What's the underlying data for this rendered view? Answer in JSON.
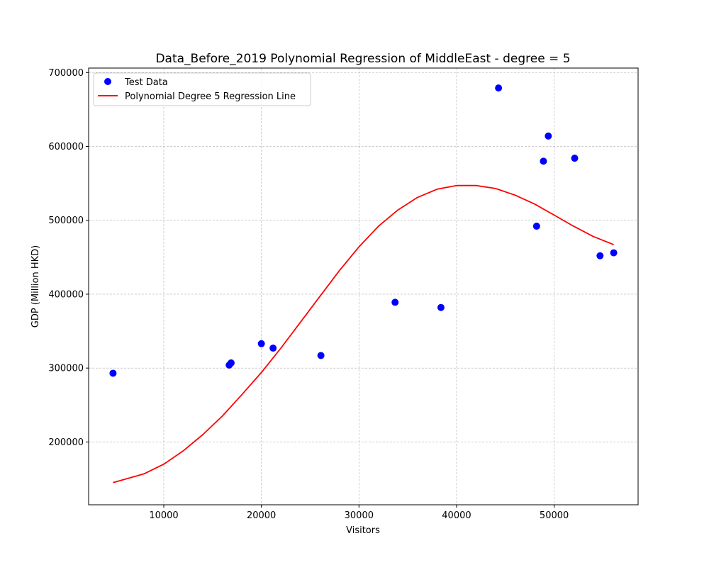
{
  "chart_data": {
    "type": "scatter",
    "title": "Data_Before_2019 Polynomial Regression of MiddleEast - degree = 5",
    "xlabel": "Visitors",
    "ylabel": "GDP (Million HKD)",
    "xlim": [
      2300,
      58600
    ],
    "ylim": [
      115000,
      706000
    ],
    "xticks": [
      10000,
      20000,
      30000,
      40000,
      50000
    ],
    "yticks": [
      200000,
      300000,
      400000,
      500000,
      600000,
      700000
    ],
    "xtick_labels": [
      "10000",
      "20000",
      "30000",
      "40000",
      "50000"
    ],
    "ytick_labels": [
      "200000",
      "300000",
      "400000",
      "500000",
      "600000",
      "700000"
    ],
    "grid": true,
    "legend_position": "top-left",
    "series": [
      {
        "name": "Test Data",
        "kind": "scatter",
        "color": "#0000ff",
        "points": [
          {
            "x": 4800,
            "y": 293000
          },
          {
            "x": 16700,
            "y": 304000
          },
          {
            "x": 16900,
            "y": 307000
          },
          {
            "x": 20000,
            "y": 333000
          },
          {
            "x": 21200,
            "y": 327000
          },
          {
            "x": 26100,
            "y": 317000
          },
          {
            "x": 33700,
            "y": 389000
          },
          {
            "x": 38400,
            "y": 382000
          },
          {
            "x": 44300,
            "y": 679000
          },
          {
            "x": 48200,
            "y": 492000
          },
          {
            "x": 48900,
            "y": 580000
          },
          {
            "x": 49400,
            "y": 614000
          },
          {
            "x": 52100,
            "y": 584000
          },
          {
            "x": 54700,
            "y": 452000
          },
          {
            "x": 56100,
            "y": 456000
          }
        ]
      },
      {
        "name": "Polynomial Degree 5 Regression Line",
        "kind": "line",
        "color": "#ff0000",
        "points": [
          {
            "x": 4800,
            "y": 145000
          },
          {
            "x": 8000,
            "y": 157000
          },
          {
            "x": 10000,
            "y": 170000
          },
          {
            "x": 12000,
            "y": 188000
          },
          {
            "x": 14000,
            "y": 210000
          },
          {
            "x": 16000,
            "y": 235000
          },
          {
            "x": 18000,
            "y": 264000
          },
          {
            "x": 20000,
            "y": 294000
          },
          {
            "x": 22000,
            "y": 327000
          },
          {
            "x": 24000,
            "y": 362000
          },
          {
            "x": 26000,
            "y": 397000
          },
          {
            "x": 28000,
            "y": 432000
          },
          {
            "x": 30000,
            "y": 464000
          },
          {
            "x": 32000,
            "y": 492000
          },
          {
            "x": 34000,
            "y": 514000
          },
          {
            "x": 36000,
            "y": 531000
          },
          {
            "x": 38000,
            "y": 542000
          },
          {
            "x": 40000,
            "y": 547000
          },
          {
            "x": 42000,
            "y": 547000
          },
          {
            "x": 44000,
            "y": 543000
          },
          {
            "x": 46000,
            "y": 534000
          },
          {
            "x": 48000,
            "y": 522000
          },
          {
            "x": 50000,
            "y": 507000
          },
          {
            "x": 52000,
            "y": 492000
          },
          {
            "x": 54000,
            "y": 478000
          },
          {
            "x": 56100,
            "y": 467000
          }
        ]
      }
    ]
  }
}
